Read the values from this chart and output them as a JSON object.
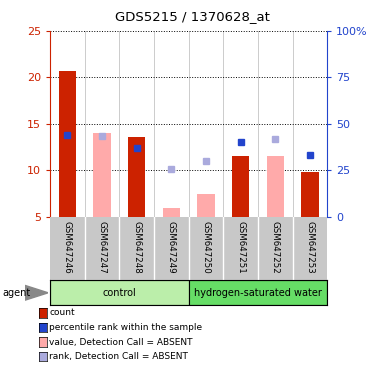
{
  "title": "GDS5215 / 1370628_at",
  "samples": [
    "GSM647246",
    "GSM647247",
    "GSM647248",
    "GSM647249",
    "GSM647250",
    "GSM647251",
    "GSM647252",
    "GSM647253"
  ],
  "red_bars": [
    20.7,
    null,
    13.6,
    null,
    null,
    11.6,
    null,
    9.8
  ],
  "pink_bars": [
    null,
    14.0,
    null,
    6.0,
    7.5,
    null,
    11.6,
    null
  ],
  "blue_squares": [
    13.8,
    null,
    12.4,
    null,
    null,
    13.1,
    null,
    11.7
  ],
  "lavender_squares": [
    null,
    13.7,
    null,
    10.1,
    11.0,
    null,
    13.4,
    null
  ],
  "ylim_left": [
    5,
    25
  ],
  "ylim_right": [
    0,
    100
  ],
  "yticks_left": [
    5,
    10,
    15,
    20,
    25
  ],
  "yticks_right": [
    0,
    25,
    50,
    75,
    100
  ],
  "ytick_labels_right": [
    "0",
    "25",
    "50",
    "75",
    "100%"
  ],
  "left_axis_color": "#cc2200",
  "right_axis_color": "#2244cc",
  "bar_width": 0.5,
  "control_bg": "#bbeeaa",
  "hydrogen_bg": "#66dd66",
  "group_label_control": "control",
  "group_label_hydrogen": "hydrogen-saturated water",
  "agent_label": "agent",
  "legend": [
    {
      "label": "count",
      "color": "#cc2200"
    },
    {
      "label": "percentile rank within the sample",
      "color": "#2244cc"
    },
    {
      "label": "value, Detection Call = ABSENT",
      "color": "#ffaaaa"
    },
    {
      "label": "rank, Detection Call = ABSENT",
      "color": "#aaaadd"
    }
  ]
}
